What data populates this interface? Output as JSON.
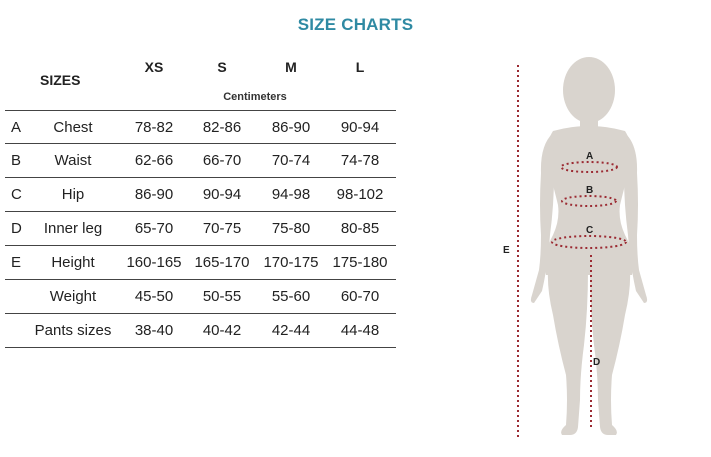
{
  "title": "SIZE CHARTS",
  "table": {
    "sizes_label": "SIZES",
    "unit_label": "Centimeters",
    "columns": [
      "XS",
      "S",
      "M",
      "L"
    ],
    "rows": [
      {
        "letter": "A",
        "name": "Chest",
        "values": [
          "78-82",
          "82-86",
          "86-90",
          "90-94"
        ]
      },
      {
        "letter": "B",
        "name": "Waist",
        "values": [
          "62-66",
          "66-70",
          "70-74",
          "74-78"
        ]
      },
      {
        "letter": "C",
        "name": "Hip",
        "values": [
          "86-90",
          "90-94",
          "94-98",
          "98-102"
        ]
      },
      {
        "letter": "D",
        "name": "Inner leg",
        "values": [
          "65-70",
          "70-75",
          "75-80",
          "80-85"
        ]
      },
      {
        "letter": "E",
        "name": "Height",
        "values": [
          "160-165",
          "165-170",
          "170-175",
          "175-180"
        ]
      },
      {
        "letter": "",
        "name": "Weight",
        "values": [
          "45-50",
          "50-55",
          "55-60",
          "60-70"
        ]
      },
      {
        "letter": "",
        "name": "Pants sizes",
        "values": [
          "38-40",
          "40-42",
          "42-44",
          "44-48"
        ]
      }
    ]
  },
  "figure": {
    "labels": {
      "a": "A",
      "b": "B",
      "c": "C",
      "d": "D",
      "e": "E"
    },
    "colors": {
      "body": "#d9d4ce",
      "measure_line": "#9b2a32"
    }
  }
}
